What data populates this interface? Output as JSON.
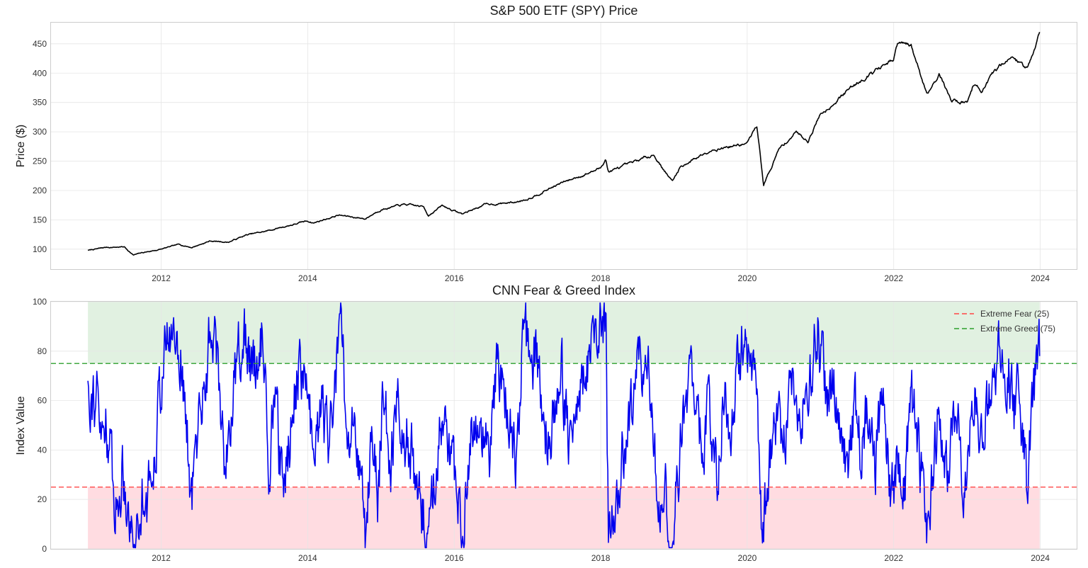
{
  "colors": {
    "price_line": "#000000",
    "index_line": "#0000ee",
    "fear": "#ff4444",
    "greed": "#2ca02c",
    "fear_band": "#ffd6dc",
    "greed_band": "#dcefdc"
  },
  "chart_data": [
    {
      "type": "line",
      "title": "S&P 500 ETF (SPY) Price",
      "xlabel": "",
      "ylabel": "Price ($)",
      "x_ticks": [
        "2012",
        "2014",
        "2016",
        "2018",
        "2020",
        "2022",
        "2024"
      ],
      "y_ticks": [
        "100",
        "150",
        "200",
        "250",
        "300",
        "350",
        "400",
        "450"
      ],
      "xlim": [
        "2010-07-01",
        "2024-07-01"
      ],
      "ylim": [
        66,
        486
      ],
      "grid": true,
      "series": [
        {
          "x": [
            "2011-01-01",
            "2011-04-01",
            "2011-07-01",
            "2011-08-15",
            "2011-10-01",
            "2012-01-01",
            "2012-04-01",
            "2012-06-01",
            "2012-09-01",
            "2012-12-01",
            "2013-03-01",
            "2013-06-01",
            "2013-09-01",
            "2013-12-31",
            "2014-02-01",
            "2014-06-01",
            "2014-10-15",
            "2014-12-31",
            "2015-05-01",
            "2015-08-01",
            "2015-08-25",
            "2015-11-01",
            "2016-02-10",
            "2016-06-01",
            "2016-11-01",
            "2016-12-31",
            "2017-06-01",
            "2017-12-31",
            "2018-01-26",
            "2018-02-08",
            "2018-06-01",
            "2018-09-20",
            "2018-12-24",
            "2019-02-01",
            "2019-07-01",
            "2019-12-31",
            "2020-02-19",
            "2020-03-23",
            "2020-06-08",
            "2020-09-01",
            "2020-10-30",
            "2020-12-31",
            "2021-06-01",
            "2021-09-01",
            "2021-12-31",
            "2022-01-20",
            "2022-03-29",
            "2022-06-16",
            "2022-08-16",
            "2022-10-12",
            "2022-12-31",
            "2023-02-01",
            "2023-03-13",
            "2023-07-31",
            "2023-10-27",
            "2023-12-29"
          ],
          "y": [
            98,
            103,
            104,
            90,
            94,
            100,
            108,
            103,
            114,
            112,
            124,
            130,
            138,
            148,
            145,
            158,
            152,
            168,
            176,
            172,
            158,
            174,
            160,
            176,
            180,
            186,
            210,
            238,
            255,
            232,
            245,
            262,
            215,
            240,
            270,
            280,
            310,
            210,
            270,
            300,
            285,
            330,
            375,
            400,
            420,
            450,
            445,
            365,
            400,
            355,
            350,
            380,
            370,
            430,
            408,
            470
          ]
        }
      ]
    },
    {
      "type": "line",
      "title": "CNN Fear & Greed Index",
      "xlabel": "",
      "ylabel": "Index Value",
      "x_ticks": [
        "2012",
        "2014",
        "2016",
        "2018",
        "2020",
        "2022",
        "2024"
      ],
      "y_ticks": [
        "0",
        "20",
        "40",
        "60",
        "80",
        "100"
      ],
      "xlim": [
        "2010-07-01",
        "2024-07-01"
      ],
      "ylim": [
        0,
        100
      ],
      "grid": true,
      "legend": {
        "location": "top-right",
        "entries": [
          {
            "label": "Extreme Fear (25)",
            "color": "#ff4444",
            "style": "dashed"
          },
          {
            "label": "Extreme Greed (75)",
            "color": "#2ca02c",
            "style": "dashed"
          }
        ]
      },
      "thresholds": [
        25,
        75
      ],
      "shaded_regions": [
        {
          "from": 0,
          "to": 25,
          "color": "#ffd6dc",
          "x": [
            "2011-01-01",
            "2023-12-29"
          ]
        },
        {
          "from": 75,
          "to": 100,
          "color": "#dcefdc",
          "x": [
            "2011-01-01",
            "2023-12-29"
          ]
        }
      ],
      "series": [
        {
          "x": [
            "2011-01-01",
            "2011-02-15",
            "2011-03-10",
            "2011-04-01",
            "2011-05-01",
            "2011-06-01",
            "2011-06-20",
            "2011-07-15",
            "2011-08-10",
            "2011-09-15",
            "2011-10-05",
            "2011-10-25",
            "2011-11-25",
            "2012-01-01",
            "2012-02-01",
            "2012-03-15",
            "2012-04-10",
            "2012-05-01",
            "2012-06-01",
            "2012-07-01",
            "2012-08-20",
            "2012-09-14",
            "2012-10-15",
            "2012-11-16",
            "2012-12-10",
            "2013-01-15",
            "2013-02-10",
            "2013-04-01",
            "2013-05-20",
            "2013-06-24",
            "2013-07-20",
            "2013-08-27",
            "2013-10-15",
            "2013-11-20",
            "2014-01-01",
            "2014-02-03",
            "2014-03-10",
            "2014-04-14",
            "2014-06-15",
            "2014-07-31",
            "2014-08-20",
            "2014-09-10",
            "2014-10-15",
            "2014-11-20",
            "2014-12-16",
            "2015-01-10",
            "2015-02-20",
            "2015-03-20",
            "2015-04-20",
            "2015-06-01",
            "2015-07-08",
            "2015-08-25",
            "2015-09-20",
            "2015-11-01",
            "2015-12-10",
            "2016-01-20",
            "2016-02-11",
            "2016-03-20",
            "2016-05-01",
            "2016-06-27",
            "2016-08-01",
            "2016-09-15",
            "2016-11-04",
            "2016-12-10",
            "2017-01-20",
            "2017-03-01",
            "2017-04-13",
            "2017-05-20",
            "2017-06-20",
            "2017-08-10",
            "2017-09-20",
            "2017-11-10",
            "2018-01-26",
            "2018-02-08",
            "2018-03-20",
            "2018-04-20",
            "2018-06-15",
            "2018-07-20",
            "2018-08-25",
            "2018-10-11",
            "2018-11-20",
            "2018-12-24",
            "2019-01-15",
            "2019-02-20",
            "2019-04-15",
            "2019-05-25",
            "2019-06-20",
            "2019-08-05",
            "2019-09-15",
            "2019-10-03",
            "2019-11-15",
            "2019-12-27",
            "2020-01-31",
            "2020-02-19",
            "2020-03-16",
            "2020-04-15",
            "2020-05-15",
            "2020-06-08",
            "2020-06-26",
            "2020-08-15",
            "2020-09-08",
            "2020-10-12",
            "2020-10-30",
            "2020-11-20",
            "2020-12-20",
            "2021-01-29",
            "2021-03-01",
            "2021-04-15",
            "2021-05-12",
            "2021-06-20",
            "2021-07-19",
            "2021-08-20",
            "2021-09-30",
            "2021-11-05",
            "2021-12-01",
            "2021-12-20",
            "2022-01-24",
            "2022-02-24",
            "2022-03-29",
            "2022-05-12",
            "2022-06-16",
            "2022-07-20",
            "2022-08-16",
            "2022-09-30",
            "2022-11-01",
            "2022-12-01",
            "2022-12-28",
            "2023-02-02",
            "2023-03-13",
            "2023-04-15",
            "2023-05-20",
            "2023-06-20",
            "2023-07-31",
            "2023-08-25",
            "2023-09-20",
            "2023-10-27",
            "2023-11-20",
            "2023-12-15",
            "2023-12-29"
          ],
          "y": [
            68,
            60,
            42,
            55,
            30,
            12,
            35,
            22,
            4,
            8,
            30,
            18,
            38,
            70,
            84,
            88,
            78,
            55,
            18,
            48,
            78,
            92,
            68,
            35,
            52,
            76,
            90,
            70,
            88,
            30,
            66,
            20,
            55,
            75,
            62,
            30,
            60,
            40,
            88,
            28,
            60,
            42,
            3,
            48,
            22,
            60,
            35,
            65,
            50,
            40,
            18,
            6,
            25,
            58,
            35,
            15,
            8,
            48,
            55,
            30,
            75,
            65,
            30,
            85,
            80,
            72,
            42,
            60,
            72,
            35,
            62,
            82,
            92,
            8,
            22,
            35,
            62,
            78,
            72,
            25,
            18,
            3,
            25,
            55,
            72,
            30,
            58,
            32,
            68,
            42,
            72,
            95,
            70,
            55,
            3,
            28,
            48,
            64,
            42,
            70,
            52,
            62,
            45,
            80,
            90,
            60,
            72,
            40,
            32,
            58,
            38,
            56,
            28,
            60,
            42,
            22,
            38,
            25,
            60,
            35,
            8,
            35,
            58,
            22,
            58,
            40,
            22,
            68,
            40,
            60,
            72,
            80,
            70,
            55,
            65,
            25,
            60,
            74,
            78
          ]
        }
      ]
    }
  ]
}
